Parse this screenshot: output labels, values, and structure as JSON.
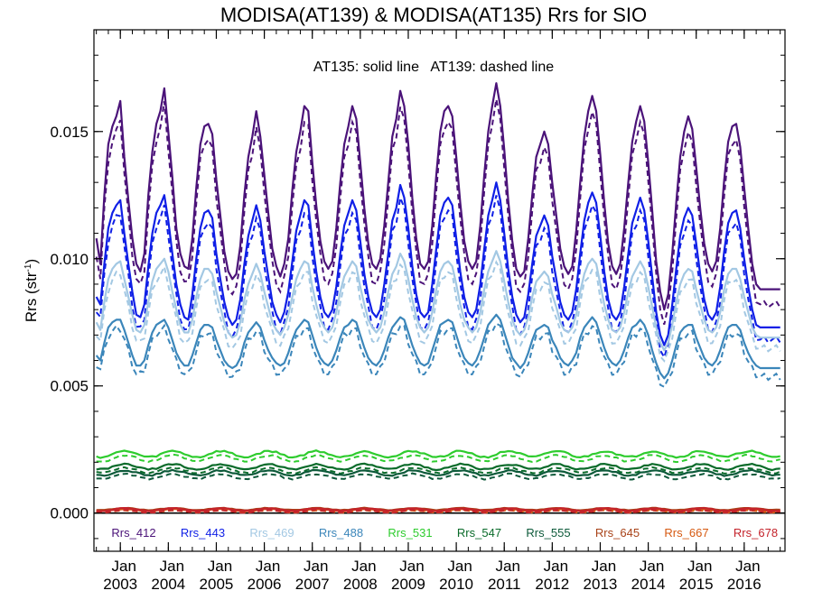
{
  "chart_data": {
    "type": "line",
    "title": "MODISA(AT139) & MODISA(AT135)  Rrs for SIO",
    "annotation": "AT135: solid line   AT139: dashed line",
    "ylabel": "Rrs (str",
    "ylabel_sup": "-1",
    "ylabel_close": ")",
    "ylim": [
      -0.0015,
      0.019
    ],
    "xlim": [
      2002.45,
      2016.85
    ],
    "zero_line": 0,
    "yticks": [
      {
        "value": 0.0,
        "label": "0.000"
      },
      {
        "value": 0.005,
        "label": "0.005"
      },
      {
        "value": 0.01,
        "label": "0.010"
      },
      {
        "value": 0.015,
        "label": "0.015"
      }
    ],
    "xticks": [
      {
        "value": 2003,
        "month": "Jan",
        "year": "2003"
      },
      {
        "value": 2004,
        "month": "Jan",
        "year": "2004"
      },
      {
        "value": 2005,
        "month": "Jan",
        "year": "2005"
      },
      {
        "value": 2006,
        "month": "Jan",
        "year": "2006"
      },
      {
        "value": 2007,
        "month": "Jan",
        "year": "2007"
      },
      {
        "value": 2008,
        "month": "Jan",
        "year": "2008"
      },
      {
        "value": 2009,
        "month": "Jan",
        "year": "2009"
      },
      {
        "value": 2010,
        "month": "Jan",
        "year": "2010"
      },
      {
        "value": 2011,
        "month": "Jan",
        "year": "2011"
      },
      {
        "value": 2012,
        "month": "Jan",
        "year": "2012"
      },
      {
        "value": 2013,
        "month": "Jan",
        "year": "2013"
      },
      {
        "value": 2014,
        "month": "Jan",
        "year": "2014"
      },
      {
        "value": 2015,
        "month": "Jan",
        "year": "2015"
      },
      {
        "value": 2016,
        "month": "Jan",
        "year": "2016"
      }
    ],
    "time_start": 2002.5,
    "time_step_years": 0.0833333,
    "series_note": "Monthly values start 2002.5; AT135 solid, AT139 dashed.",
    "series": [
      {
        "name": "Rrs_412",
        "color": "#4b1379",
        "at135": [
          0.0108,
          0.0098,
          0.0125,
          0.0145,
          0.0152,
          0.0156,
          0.0162,
          0.014,
          0.0123,
          0.0108,
          0.0098,
          0.0095,
          0.0102,
          0.0125,
          0.0142,
          0.0153,
          0.0158,
          0.0167,
          0.015,
          0.0132,
          0.0112,
          0.0102,
          0.0097,
          0.0096,
          0.0108,
          0.0128,
          0.0145,
          0.0152,
          0.0153,
          0.0149,
          0.0131,
          0.0117,
          0.0103,
          0.0095,
          0.0092,
          0.0094,
          0.0105,
          0.0125,
          0.014,
          0.0148,
          0.0158,
          0.0148,
          0.0133,
          0.0118,
          0.0104,
          0.0097,
          0.0093,
          0.0098,
          0.0108,
          0.0127,
          0.0142,
          0.015,
          0.016,
          0.0158,
          0.0138,
          0.0121,
          0.0107,
          0.0099,
          0.0096,
          0.0099,
          0.0112,
          0.013,
          0.0145,
          0.0152,
          0.016,
          0.0155,
          0.0138,
          0.012,
          0.0106,
          0.0098,
          0.0096,
          0.01,
          0.0113,
          0.013,
          0.0148,
          0.0155,
          0.0166,
          0.016,
          0.0145,
          0.0124,
          0.0108,
          0.0098,
          0.0096,
          0.0099,
          0.0113,
          0.0133,
          0.015,
          0.0158,
          0.016,
          0.0156,
          0.014,
          0.0122,
          0.0107,
          0.0099,
          0.0096,
          0.0099,
          0.0113,
          0.0133,
          0.015,
          0.016,
          0.0169,
          0.016,
          0.0143,
          0.0123,
          0.0107,
          0.0096,
          0.0093,
          0.0095,
          0.0108,
          0.0125,
          0.014,
          0.0145,
          0.015,
          0.0145,
          0.013,
          0.0117,
          0.0104,
          0.0097,
          0.0094,
          0.0097,
          0.0111,
          0.013,
          0.0148,
          0.0158,
          0.0164,
          0.0158,
          0.0141,
          0.0122,
          0.0106,
          0.0097,
          0.0094,
          0.0098,
          0.0112,
          0.013,
          0.0146,
          0.0154,
          0.016,
          0.0154,
          0.0138,
          0.0119,
          0.0099,
          0.0087,
          0.008,
          0.0086,
          0.0102,
          0.0122,
          0.014,
          0.015,
          0.0156,
          0.0151,
          0.0136,
          0.012,
          0.0106,
          0.0098,
          0.0095,
          0.0099,
          0.0112,
          0.0131,
          0.0146,
          0.0152,
          0.0153,
          0.0144,
          0.0128,
          0.0112,
          0.0098,
          0.009,
          0.0088
        ]
      },
      {
        "name": "Rrs_443",
        "color": "#0f1fe6",
        "at135": [
          0.0085,
          0.0082,
          0.0098,
          0.0112,
          0.0118,
          0.0121,
          0.0123,
          0.011,
          0.0098,
          0.0087,
          0.0078,
          0.0077,
          0.0082,
          0.0097,
          0.011,
          0.0118,
          0.0121,
          0.0125,
          0.0115,
          0.0102,
          0.009,
          0.0082,
          0.0077,
          0.0076,
          0.0086,
          0.01,
          0.0112,
          0.0118,
          0.0119,
          0.0116,
          0.0102,
          0.0092,
          0.0083,
          0.0077,
          0.0074,
          0.0076,
          0.0084,
          0.0098,
          0.0109,
          0.0115,
          0.0121,
          0.0115,
          0.0103,
          0.0093,
          0.0083,
          0.0078,
          0.0075,
          0.0079,
          0.0087,
          0.0099,
          0.0111,
          0.0117,
          0.0123,
          0.0121,
          0.0107,
          0.0095,
          0.0085,
          0.0079,
          0.0077,
          0.008,
          0.0089,
          0.0102,
          0.0113,
          0.0118,
          0.0123,
          0.0119,
          0.0107,
          0.0094,
          0.0085,
          0.0079,
          0.0077,
          0.008,
          0.009,
          0.0102,
          0.0115,
          0.012,
          0.0129,
          0.0124,
          0.0112,
          0.0097,
          0.0086,
          0.0079,
          0.0077,
          0.0079,
          0.009,
          0.0104,
          0.0117,
          0.0122,
          0.0124,
          0.0121,
          0.0108,
          0.0095,
          0.0085,
          0.0079,
          0.0077,
          0.008,
          0.009,
          0.0104,
          0.0117,
          0.0123,
          0.013,
          0.0123,
          0.011,
          0.0096,
          0.0085,
          0.0078,
          0.0075,
          0.0077,
          0.0086,
          0.0098,
          0.0109,
          0.0113,
          0.0117,
          0.0113,
          0.0101,
          0.0092,
          0.0083,
          0.0078,
          0.0076,
          0.0079,
          0.0088,
          0.0102,
          0.0115,
          0.0122,
          0.0126,
          0.0122,
          0.0109,
          0.0095,
          0.0084,
          0.0078,
          0.0076,
          0.0079,
          0.0089,
          0.0102,
          0.0114,
          0.0119,
          0.0124,
          0.0119,
          0.0107,
          0.0093,
          0.0079,
          0.007,
          0.0066,
          0.007,
          0.0082,
          0.0096,
          0.0109,
          0.0116,
          0.012,
          0.0117,
          0.0106,
          0.0094,
          0.0084,
          0.0078,
          0.0076,
          0.0079,
          0.0089,
          0.0103,
          0.0114,
          0.0118,
          0.0119,
          0.0112,
          0.01,
          0.0089,
          0.008,
          0.0074,
          0.0073
        ]
      },
      {
        "name": "Rrs_469",
        "color": "#a3c8e3",
        "at135": [
          0.0075,
          0.0072,
          0.0083,
          0.0092,
          0.0096,
          0.0098,
          0.0099,
          0.0092,
          0.0085,
          0.0078,
          0.0072,
          0.0071,
          0.0074,
          0.0083,
          0.0091,
          0.0096,
          0.0098,
          0.01,
          0.0095,
          0.0087,
          0.008,
          0.0074,
          0.0071,
          0.0071,
          0.0076,
          0.0085,
          0.0092,
          0.0096,
          0.0096,
          0.0094,
          0.0087,
          0.0081,
          0.0075,
          0.0071,
          0.0069,
          0.007,
          0.0075,
          0.0084,
          0.009,
          0.0094,
          0.0098,
          0.0094,
          0.0087,
          0.0081,
          0.0075,
          0.0072,
          0.007,
          0.0073,
          0.0078,
          0.0085,
          0.0092,
          0.0096,
          0.0099,
          0.0098,
          0.0089,
          0.0082,
          0.0076,
          0.0073,
          0.0071,
          0.0073,
          0.0079,
          0.0087,
          0.0093,
          0.0096,
          0.0099,
          0.0097,
          0.0089,
          0.0082,
          0.0076,
          0.0073,
          0.0071,
          0.0073,
          0.0079,
          0.0087,
          0.0094,
          0.0097,
          0.0102,
          0.0099,
          0.0092,
          0.0084,
          0.0077,
          0.0073,
          0.0071,
          0.0073,
          0.0079,
          0.0088,
          0.0095,
          0.0098,
          0.0099,
          0.0097,
          0.009,
          0.0082,
          0.0076,
          0.0073,
          0.0071,
          0.0073,
          0.0079,
          0.0088,
          0.0095,
          0.0099,
          0.0103,
          0.0099,
          0.0091,
          0.0083,
          0.0076,
          0.0072,
          0.007,
          0.0072,
          0.0077,
          0.0085,
          0.0091,
          0.0093,
          0.0095,
          0.0093,
          0.0086,
          0.0081,
          0.0075,
          0.0072,
          0.0071,
          0.0073,
          0.0078,
          0.0087,
          0.0094,
          0.0098,
          0.01,
          0.0098,
          0.009,
          0.0082,
          0.0076,
          0.0072,
          0.0071,
          0.0073,
          0.0079,
          0.0087,
          0.0093,
          0.0096,
          0.0099,
          0.0096,
          0.0089,
          0.0081,
          0.0073,
          0.0067,
          0.0064,
          0.0067,
          0.0074,
          0.0083,
          0.009,
          0.0094,
          0.0096,
          0.0095,
          0.0088,
          0.0082,
          0.0076,
          0.0072,
          0.0071,
          0.0073,
          0.0079,
          0.0088,
          0.0094,
          0.0096,
          0.0096,
          0.0092,
          0.0085,
          0.0079,
          0.0073,
          0.007,
          0.0069
        ]
      },
      {
        "name": "Rrs_488",
        "color": "#3b86ba",
        "at135": [
          0.0062,
          0.006,
          0.0067,
          0.0073,
          0.0075,
          0.0076,
          0.0076,
          0.0072,
          0.0067,
          0.0062,
          0.0058,
          0.0058,
          0.006,
          0.0066,
          0.0071,
          0.0074,
          0.0075,
          0.0076,
          0.0073,
          0.0068,
          0.0063,
          0.006,
          0.0058,
          0.0058,
          0.0062,
          0.0067,
          0.0072,
          0.0074,
          0.0074,
          0.0073,
          0.0068,
          0.0064,
          0.006,
          0.0058,
          0.0057,
          0.0058,
          0.0061,
          0.0067,
          0.0071,
          0.0073,
          0.0075,
          0.0073,
          0.0068,
          0.0064,
          0.0061,
          0.0059,
          0.0058,
          0.0059,
          0.0063,
          0.0068,
          0.0072,
          0.0074,
          0.0076,
          0.0075,
          0.007,
          0.0065,
          0.0061,
          0.0059,
          0.0058,
          0.006,
          0.0064,
          0.0069,
          0.0073,
          0.0074,
          0.0076,
          0.0075,
          0.007,
          0.0065,
          0.0061,
          0.0059,
          0.0058,
          0.006,
          0.0064,
          0.0069,
          0.0073,
          0.0075,
          0.0077,
          0.0076,
          0.0071,
          0.0066,
          0.0062,
          0.0059,
          0.0058,
          0.0059,
          0.0064,
          0.0069,
          0.0074,
          0.0075,
          0.0076,
          0.0075,
          0.007,
          0.0065,
          0.0061,
          0.0059,
          0.0058,
          0.006,
          0.0064,
          0.0069,
          0.0074,
          0.0076,
          0.0078,
          0.0076,
          0.0071,
          0.0066,
          0.0061,
          0.0059,
          0.0057,
          0.0059,
          0.0063,
          0.0068,
          0.0072,
          0.0073,
          0.0074,
          0.0073,
          0.0068,
          0.0065,
          0.0061,
          0.0059,
          0.0058,
          0.006,
          0.0063,
          0.0069,
          0.0073,
          0.0075,
          0.0077,
          0.0075,
          0.007,
          0.0065,
          0.0061,
          0.0059,
          0.0058,
          0.006,
          0.0064,
          0.0069,
          0.0073,
          0.0074,
          0.0076,
          0.0074,
          0.007,
          0.0064,
          0.0059,
          0.0055,
          0.0053,
          0.0055,
          0.006,
          0.0066,
          0.0071,
          0.0073,
          0.0074,
          0.0074,
          0.0069,
          0.0065,
          0.0061,
          0.0059,
          0.0058,
          0.006,
          0.0064,
          0.0069,
          0.0073,
          0.0074,
          0.0074,
          0.0072,
          0.0067,
          0.0063,
          0.006,
          0.0058,
          0.0057
        ]
      },
      {
        "name": "Rrs_531",
        "color": "#2ecc2e",
        "base": 0.00232,
        "amp": 0.00012
      },
      {
        "name": "Rrs_547",
        "color": "#0a6b2a",
        "base": 0.00182,
        "amp": 0.0001
      },
      {
        "name": "Rrs_555",
        "color": "#0d5a3a",
        "base": 0.00158,
        "amp": 0.0001
      },
      {
        "name": "Rrs_645",
        "color": "#a84218",
        "base": 0.00016,
        "amp": 4e-05
      },
      {
        "name": "Rrs_667",
        "color": "#d65a12",
        "base": 0.00012,
        "amp": 4e-05
      },
      {
        "name": "Rrs_678",
        "color": "#c4232b",
        "base": 0.00014,
        "amp": 5e-05
      }
    ]
  }
}
